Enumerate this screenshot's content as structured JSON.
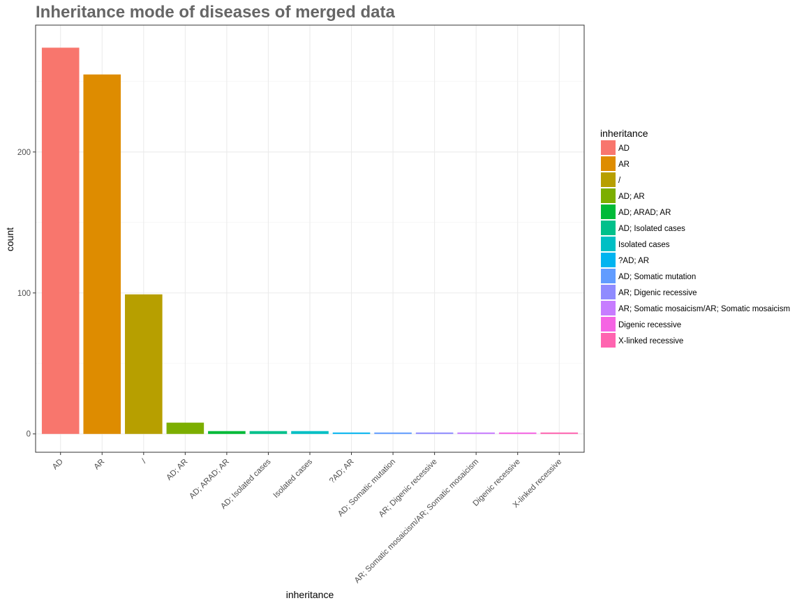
{
  "chart_data": {
    "type": "bar",
    "title": "Inheritance mode of diseases of merged data",
    "xlabel": "inheritance",
    "ylabel": "count",
    "ylim": [
      -13,
      290
    ],
    "yticks": [
      0,
      100,
      200
    ],
    "grid": true,
    "legend": {
      "title": "inheritance",
      "placement": "right"
    },
    "categories": [
      "AD",
      "AR",
      "/",
      "AD; AR",
      "AD; ARAD; AR",
      "AD; Isolated cases",
      "Isolated cases",
      "?AD; AR",
      "AD; Somatic mutation",
      "AR; Digenic recessive",
      "AR; Somatic mosaicism/AR; Somatic mosaicism",
      "Digenic recessive",
      "X-linked recessive"
    ],
    "values": [
      274,
      255,
      99,
      8,
      2,
      2,
      2,
      1,
      1,
      1,
      1,
      1,
      1
    ],
    "colors": [
      "#F8766D",
      "#DE8C00",
      "#B79F00",
      "#7CAE00",
      "#00BA38",
      "#00C08B",
      "#00BFC4",
      "#00B4F0",
      "#619CFF",
      "#8F8BFF",
      "#C77CFF",
      "#F564E3",
      "#FF64B0"
    ]
  }
}
